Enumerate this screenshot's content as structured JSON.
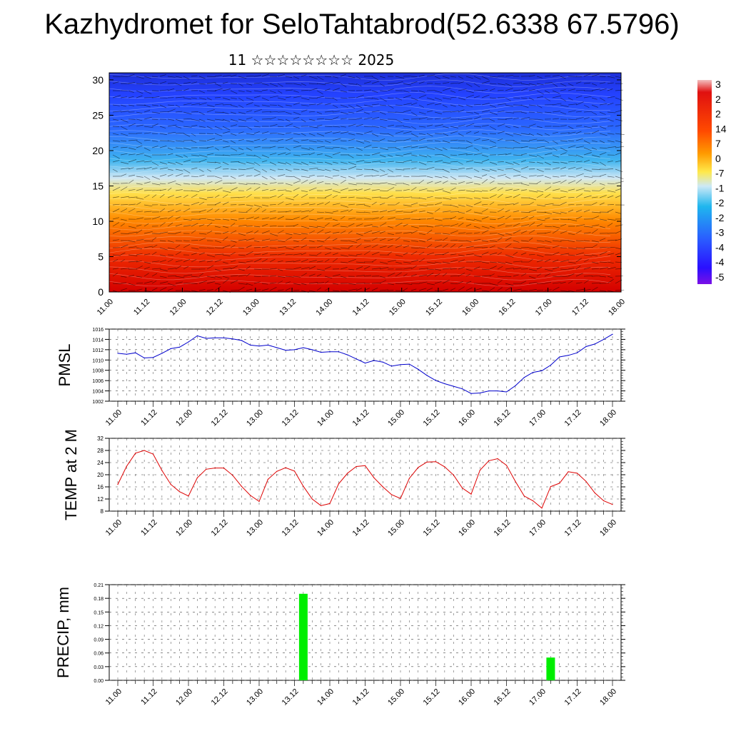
{
  "page": {
    "title": "Kazhydromet for SeloTahtabrod(52.6338 67.5796)",
    "subtitle": "11 ☆☆☆☆☆☆☆☆ 2025"
  },
  "chart_data": [
    {
      "type": "heatmap",
      "title": "",
      "x_tick_labels": [
        "11.00",
        "11.12",
        "12.00",
        "12.12",
        "13.00",
        "13.12",
        "14.00",
        "14.12",
        "15.00",
        "15.12",
        "16.00",
        "16.12",
        "17.00",
        "17.12",
        "18.00"
      ],
      "y_ticks": [
        0,
        5,
        10,
        15,
        20,
        25,
        30
      ],
      "ylim": [
        0,
        31
      ],
      "colorbar_labels": [
        "3",
        "2",
        "2",
        "14",
        "7",
        "0",
        "-7",
        "-1",
        "-2",
        "-2",
        "-3",
        "-4",
        "-4",
        "-5"
      ],
      "colors": {
        "hot": "#d40000",
        "warm": "#ff8a00",
        "mild": "#ffe04a",
        "cool": "#3fb4ef",
        "cold": "#2442ff",
        "coldest": "#3a00cc"
      },
      "description_layers": [
        "temperature shading",
        "wind barbs",
        "contour lines"
      ]
    },
    {
      "type": "line",
      "ylabel": "PMSL",
      "ylim": [
        1002,
        1016
      ],
      "y_ticks": [
        1002,
        1004,
        1006,
        1008,
        1010,
        1012,
        1014,
        1016
      ],
      "x_tick_labels": [
        "11.00",
        "11.12",
        "12.00",
        "12.12",
        "13.00",
        "13.12",
        "14.00",
        "14.12",
        "15.00",
        "15.12",
        "16.00",
        "16.12",
        "17.00",
        "17.12",
        "18.00"
      ],
      "series": [
        {
          "color": "#0000cc",
          "x": [
            0,
            3,
            6,
            9,
            12,
            15,
            18,
            21,
            24,
            27,
            30,
            33,
            36,
            39,
            42,
            45,
            48,
            51,
            54,
            57,
            60,
            63,
            66,
            69,
            72,
            75,
            78,
            81,
            84,
            87,
            90,
            93,
            96,
            99,
            102,
            105,
            108,
            111,
            114,
            117,
            120,
            123,
            126,
            129,
            132,
            135,
            138,
            141,
            144,
            147,
            150,
            153,
            156,
            159,
            162,
            165,
            168
          ],
          "values": [
            1011.3,
            1011.1,
            1011.4,
            1010.4,
            1010.5,
            1011.3,
            1012.2,
            1012.5,
            1013.5,
            1014.7,
            1014.2,
            1014.3,
            1014.3,
            1014.1,
            1013.8,
            1012.9,
            1012.7,
            1012.9,
            1012.4,
            1011.9,
            1012.0,
            1012.4,
            1012.0,
            1011.5,
            1011.6,
            1011.6,
            1011.0,
            1010.2,
            1009.4,
            1009.9,
            1009.6,
            1008.8,
            1009.1,
            1009.2,
            1008.2,
            1007.0,
            1006.0,
            1005.4,
            1004.9,
            1004.4,
            1003.5,
            1003.6,
            1004.0,
            1004.0,
            1003.8,
            1005.0,
            1006.6,
            1007.6,
            1007.9,
            1009.0,
            1010.6,
            1010.9,
            1011.4,
            1012.6,
            1013.1,
            1014.0,
            1015.0
          ]
        }
      ]
    },
    {
      "type": "line",
      "ylabel": "TEMP at 2 M",
      "ylim": [
        8,
        32
      ],
      "y_ticks": [
        8,
        12,
        16,
        20,
        24,
        28,
        32
      ],
      "x_tick_labels": [
        "11.00",
        "11.12",
        "12.00",
        "12.12",
        "13.00",
        "13.12",
        "14.00",
        "14.12",
        "15.00",
        "15.12",
        "16.00",
        "16.12",
        "17.00",
        "17.12",
        "18.00"
      ],
      "series": [
        {
          "color": "#dd0000",
          "x": [
            0,
            3,
            6,
            9,
            12,
            15,
            18,
            21,
            24,
            27,
            30,
            33,
            36,
            39,
            42,
            45,
            48,
            51,
            54,
            57,
            60,
            63,
            66,
            69,
            72,
            75,
            78,
            81,
            84,
            87,
            90,
            93,
            96,
            99,
            102,
            105,
            108,
            111,
            114,
            117,
            120,
            123,
            126,
            129,
            132,
            135,
            138,
            141,
            144,
            147,
            150,
            153,
            156,
            159,
            162,
            165,
            168
          ],
          "values": [
            16.8,
            22.8,
            27.1,
            28.0,
            26.8,
            21.4,
            16.8,
            14.4,
            13.0,
            19.0,
            21.8,
            22.2,
            22.2,
            19.8,
            16.2,
            13.2,
            11.2,
            18.5,
            21.1,
            22.3,
            21.2,
            16.2,
            12.0,
            9.8,
            10.5,
            17.0,
            20.5,
            22.7,
            23.0,
            19.0,
            16.0,
            13.4,
            12.2,
            18.8,
            22.4,
            24.2,
            24.3,
            22.6,
            19.9,
            15.6,
            13.6,
            21.5,
            24.6,
            25.3,
            23.1,
            17.8,
            13.0,
            11.4,
            9.0,
            16.1,
            17.2,
            21.0,
            20.5,
            17.8,
            14.0,
            11.4,
            10.2
          ]
        }
      ]
    },
    {
      "type": "bar",
      "ylabel": "PRECIP, mm",
      "ylim": [
        0,
        0.21
      ],
      "y_tick_labels": [
        "0.00",
        "0.03",
        "0.06",
        "0.09",
        "0.12",
        "0.15",
        "0.18",
        "0.21"
      ],
      "x_tick_labels": [
        "11.00",
        "11.12",
        "12.00",
        "12.12",
        "13.00",
        "13.12",
        "14.00",
        "14.12",
        "15.00",
        "15.12",
        "16.00",
        "16.12",
        "17.00",
        "17.12",
        "18.00"
      ],
      "bar_color": "#00ee00",
      "bars": [
        {
          "x": 63,
          "value": 0.19
        },
        {
          "x": 147,
          "value": 0.05
        }
      ]
    }
  ]
}
